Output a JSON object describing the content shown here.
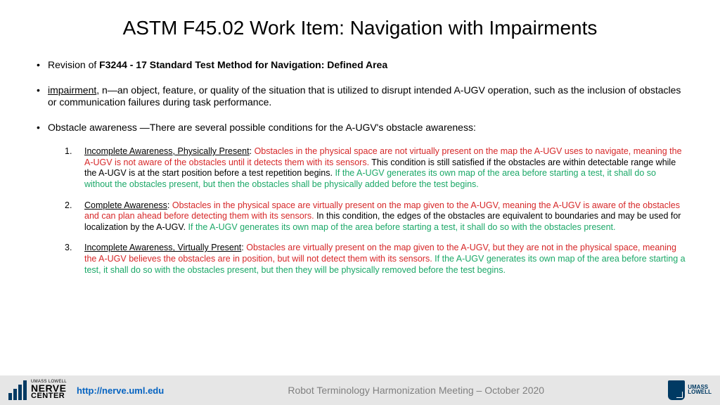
{
  "title": "ASTM F45.02 Work Item: Navigation with Impairments",
  "bullets": {
    "b1_prefix": "Revision of ",
    "b1_bold": "F3244 - 17 Standard Test Method for Navigation: Defined Area",
    "b2_term": "impairment",
    "b2_rest": ", n—an object, feature, or quality of the situation that is utilized to disrupt intended A-UGV operation, such as the inclusion of obstacles or communication failures during task performance.",
    "b3": "Obstacle awareness —There are several possible conditions for the A-UGV's obstacle awareness:"
  },
  "items": [
    {
      "num": "1.",
      "head": "Incomplete Awareness, Physically Present",
      "red": " Obstacles in the physical space are not virtually present on the map the A-UGV uses to navigate, meaning the A-UGV is not aware of the obstacles until it detects them with its sensors.",
      "black": " This condition is still satisfied if the obstacles are within detectable range while the A-UGV is at the start position before a test repetition begins.",
      "green": " If the A-UGV generates its own map of the area before starting a test, it shall do so without the obstacles present, but then the obstacles shall be physically added before the test begins."
    },
    {
      "num": "2.",
      "head": "Complete Awareness",
      "red": " Obstacles in the physical space are virtually present on the map given to the A-UGV, meaning the A-UGV is aware of the obstacles and can plan ahead before detecting them with its sensors.",
      "black": " In this condition, the edges of the obstacles are equivalent to boundaries and may be used for localization by the A-UGV.",
      "green": " If the A-UGV generates its own map of the area before starting a test, it shall do so with the obstacles present."
    },
    {
      "num": "3.",
      "head": "Incomplete Awareness, Virtually Present",
      "red": " Obstacles are virtually present on the map given to the A-UGV, but they are not in the physical space, meaning the A-UGV believes the obstacles are in position, but will not detect them with its sensors.",
      "black": "",
      "green": " If the A-UGV generates its own map of the area before starting a test, it shall do so with the obstacles present, but then they will be physically removed before the test begins."
    }
  ],
  "footer": {
    "logo_small": "UMASS LOWELL",
    "logo_big": "NERVE",
    "logo_sub": "CENTER",
    "url": "http://nerve.uml.edu",
    "center": "Robot Terminology Harmonization Meeting – October 2020",
    "umass1": "UMASS",
    "umass2": "LOWELL"
  }
}
